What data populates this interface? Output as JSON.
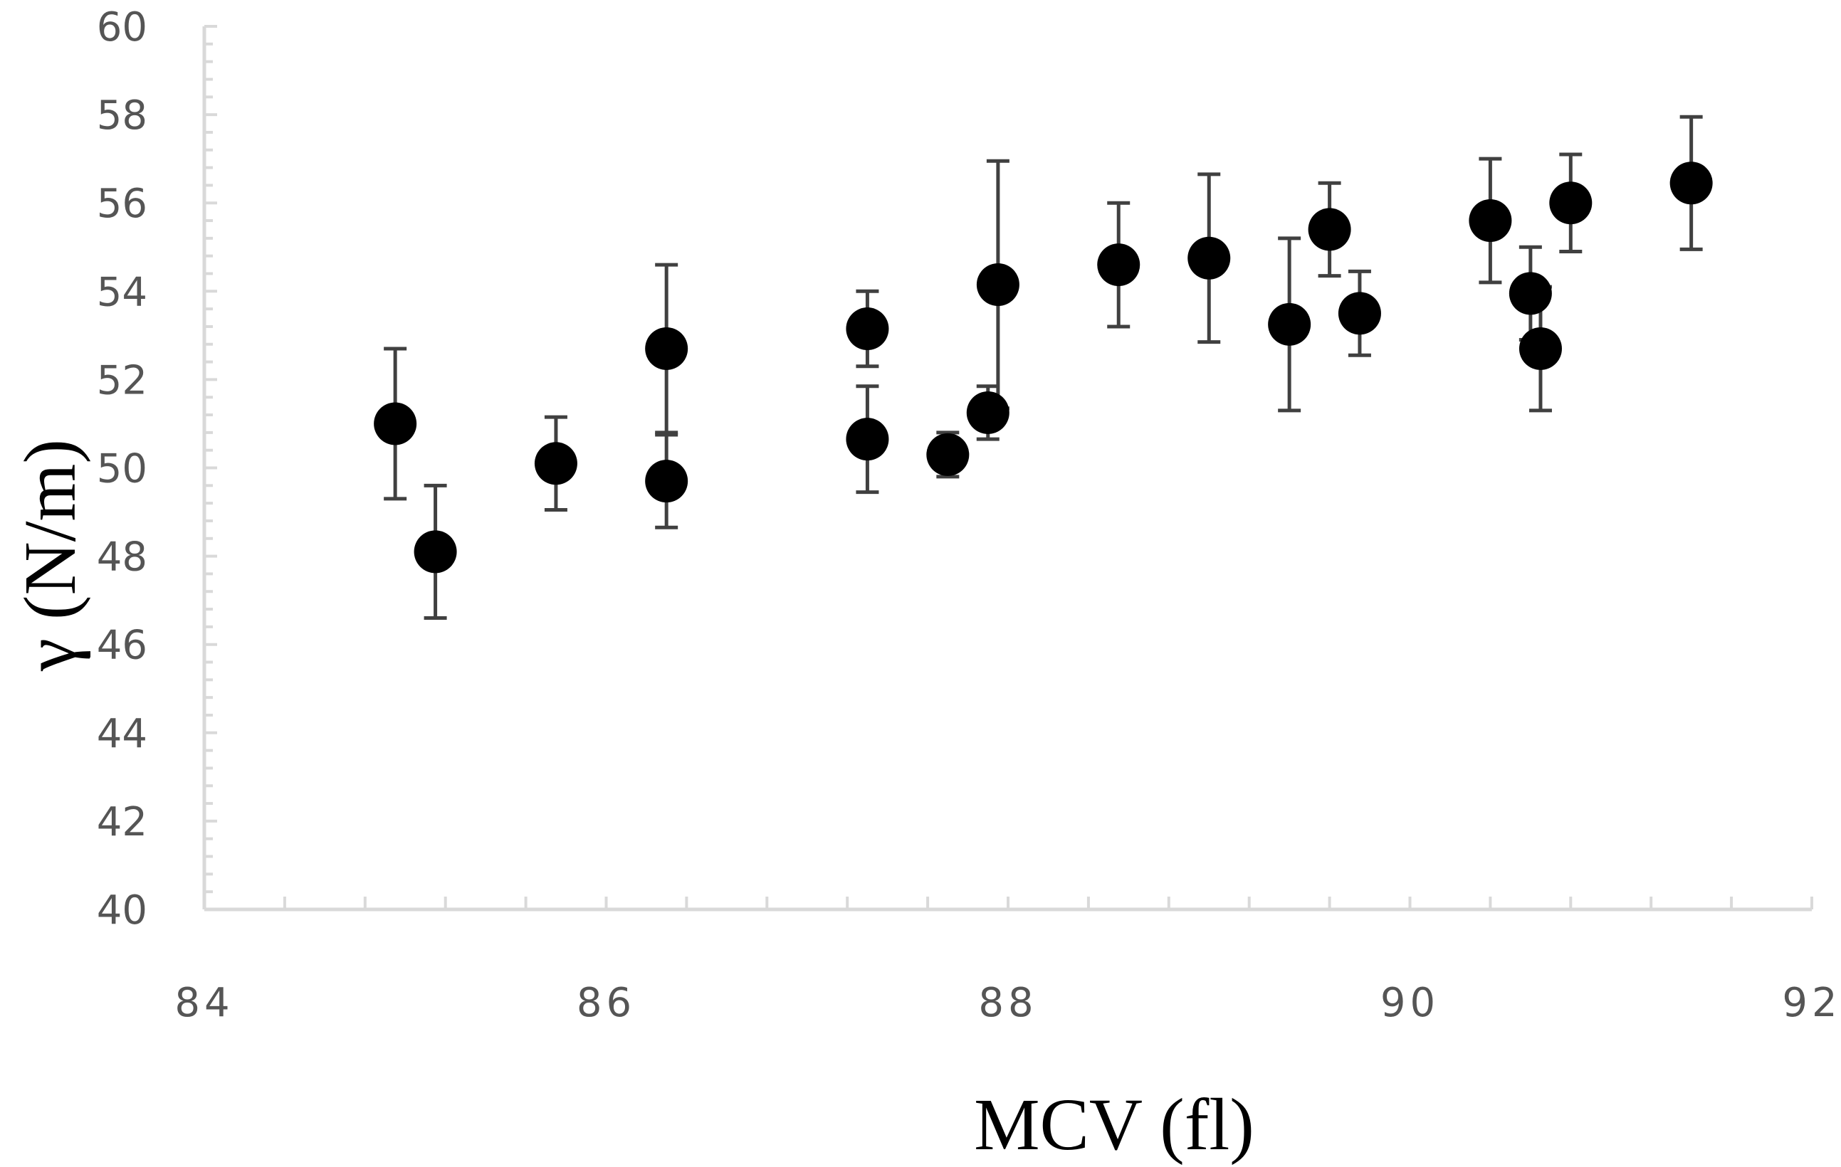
{
  "chart_data": {
    "type": "scatter",
    "title": "",
    "xlabel": "MCV (fl)",
    "ylabel": "γ (N/m)",
    "xlim": [
      84,
      92
    ],
    "ylim": [
      40,
      60
    ],
    "x_ticks": [
      "84",
      "86",
      "88",
      "90",
      "92"
    ],
    "y_ticks": [
      "40",
      "42",
      "44",
      "46",
      "48",
      "50",
      "52",
      "54",
      "56",
      "58",
      "60"
    ],
    "grid": false,
    "legend": "none",
    "marker_color": "#000000",
    "errorbar_color": "#404040",
    "axis_color": "#d9d9d9",
    "points": [
      {
        "x": 84.95,
        "y": 51.0,
        "err_low": 1.7,
        "err_high": 1.7
      },
      {
        "x": 85.15,
        "y": 48.1,
        "err_low": 1.5,
        "err_high": 1.5
      },
      {
        "x": 85.75,
        "y": 50.1,
        "err_low": 1.05,
        "err_high": 1.05
      },
      {
        "x": 86.3,
        "y": 52.7,
        "err_low": 1.9,
        "err_high": 1.9
      },
      {
        "x": 86.3,
        "y": 49.7,
        "err_low": 1.05,
        "err_high": 1.05
      },
      {
        "x": 87.3,
        "y": 53.15,
        "err_low": 0.85,
        "err_high": 0.85
      },
      {
        "x": 87.3,
        "y": 50.65,
        "err_low": 1.2,
        "err_high": 1.2
      },
      {
        "x": 87.7,
        "y": 50.3,
        "err_low": 0.5,
        "err_high": 0.5
      },
      {
        "x": 87.9,
        "y": 51.25,
        "err_low": 0.6,
        "err_high": 0.6
      },
      {
        "x": 87.95,
        "y": 54.15,
        "err_low": 2.8,
        "err_high": 2.8
      },
      {
        "x": 88.55,
        "y": 54.6,
        "err_low": 1.4,
        "err_high": 1.4
      },
      {
        "x": 89.0,
        "y": 54.75,
        "err_low": 1.9,
        "err_high": 1.9
      },
      {
        "x": 89.4,
        "y": 53.25,
        "err_low": 1.95,
        "err_high": 1.95
      },
      {
        "x": 89.6,
        "y": 55.4,
        "err_low": 1.05,
        "err_high": 1.05
      },
      {
        "x": 89.75,
        "y": 53.5,
        "err_low": 0.95,
        "err_high": 0.95
      },
      {
        "x": 90.4,
        "y": 55.6,
        "err_low": 1.4,
        "err_high": 1.4
      },
      {
        "x": 90.6,
        "y": 53.95,
        "err_low": 1.05,
        "err_high": 1.05
      },
      {
        "x": 90.65,
        "y": 52.7,
        "err_low": 1.4,
        "err_high": 1.4
      },
      {
        "x": 90.8,
        "y": 56.0,
        "err_low": 1.1,
        "err_high": 1.1
      },
      {
        "x": 91.4,
        "y": 56.45,
        "err_low": 1.5,
        "err_high": 1.5
      }
    ]
  }
}
